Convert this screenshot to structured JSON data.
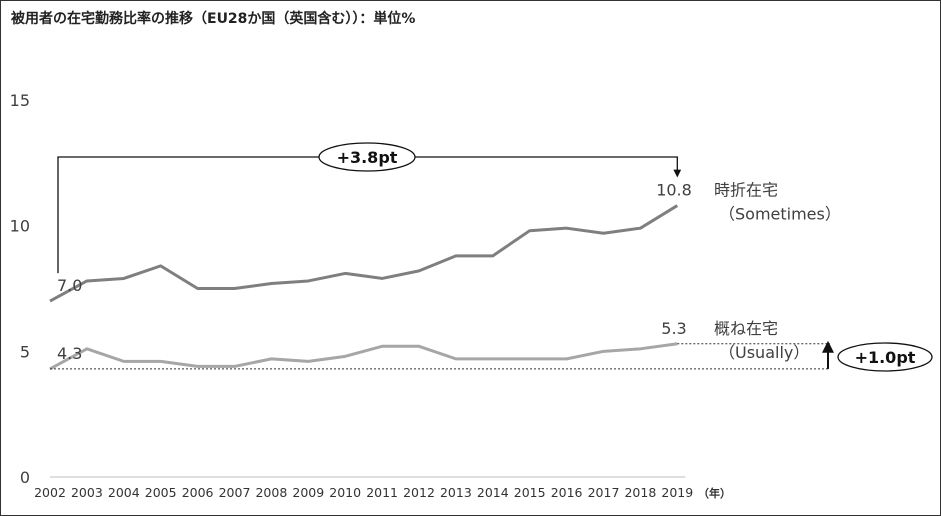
{
  "title": "被用者の在宅勤務比率の推移（EU28か国（英国含む））：単位%",
  "chart_data": {
    "type": "line",
    "title": "被用者の在宅勤務比率の推移（EU28か国（英国含む））：単位%",
    "x_unit_label": "（年）",
    "categories": [
      "2002",
      "2003",
      "2004",
      "2005",
      "2006",
      "2007",
      "2008",
      "2009",
      "2010",
      "2011",
      "2012",
      "2013",
      "2014",
      "2015",
      "2016",
      "2017",
      "2018",
      "2019"
    ],
    "ylim": [
      0,
      15
    ],
    "yticks": [
      "0",
      "5",
      "10",
      "15"
    ],
    "grid": false,
    "series": [
      {
        "name_line1": "時折在宅",
        "name_line2": "（Sometimes）",
        "color": "#7f7f7f",
        "values": [
          7.0,
          7.8,
          7.9,
          8.4,
          7.5,
          7.5,
          7.7,
          7.8,
          8.1,
          7.9,
          8.2,
          8.8,
          8.8,
          9.8,
          9.9,
          9.7,
          9.9,
          10.8
        ],
        "start_label": "7.0",
        "end_label": "10.8"
      },
      {
        "name_line1": "概ね在宅",
        "name_line2": "（Usually）",
        "color": "#a6a6a6",
        "values": [
          4.3,
          5.1,
          4.6,
          4.6,
          4.4,
          4.4,
          4.7,
          4.6,
          4.8,
          5.2,
          5.2,
          4.7,
          4.7,
          4.7,
          4.7,
          5.0,
          5.1,
          5.3
        ],
        "start_label": "4.3",
        "end_label": "5.3"
      }
    ],
    "annotations": [
      {
        "text": "+3.8pt",
        "series": 0
      },
      {
        "text": "+1.0pt",
        "series": 1
      }
    ]
  }
}
